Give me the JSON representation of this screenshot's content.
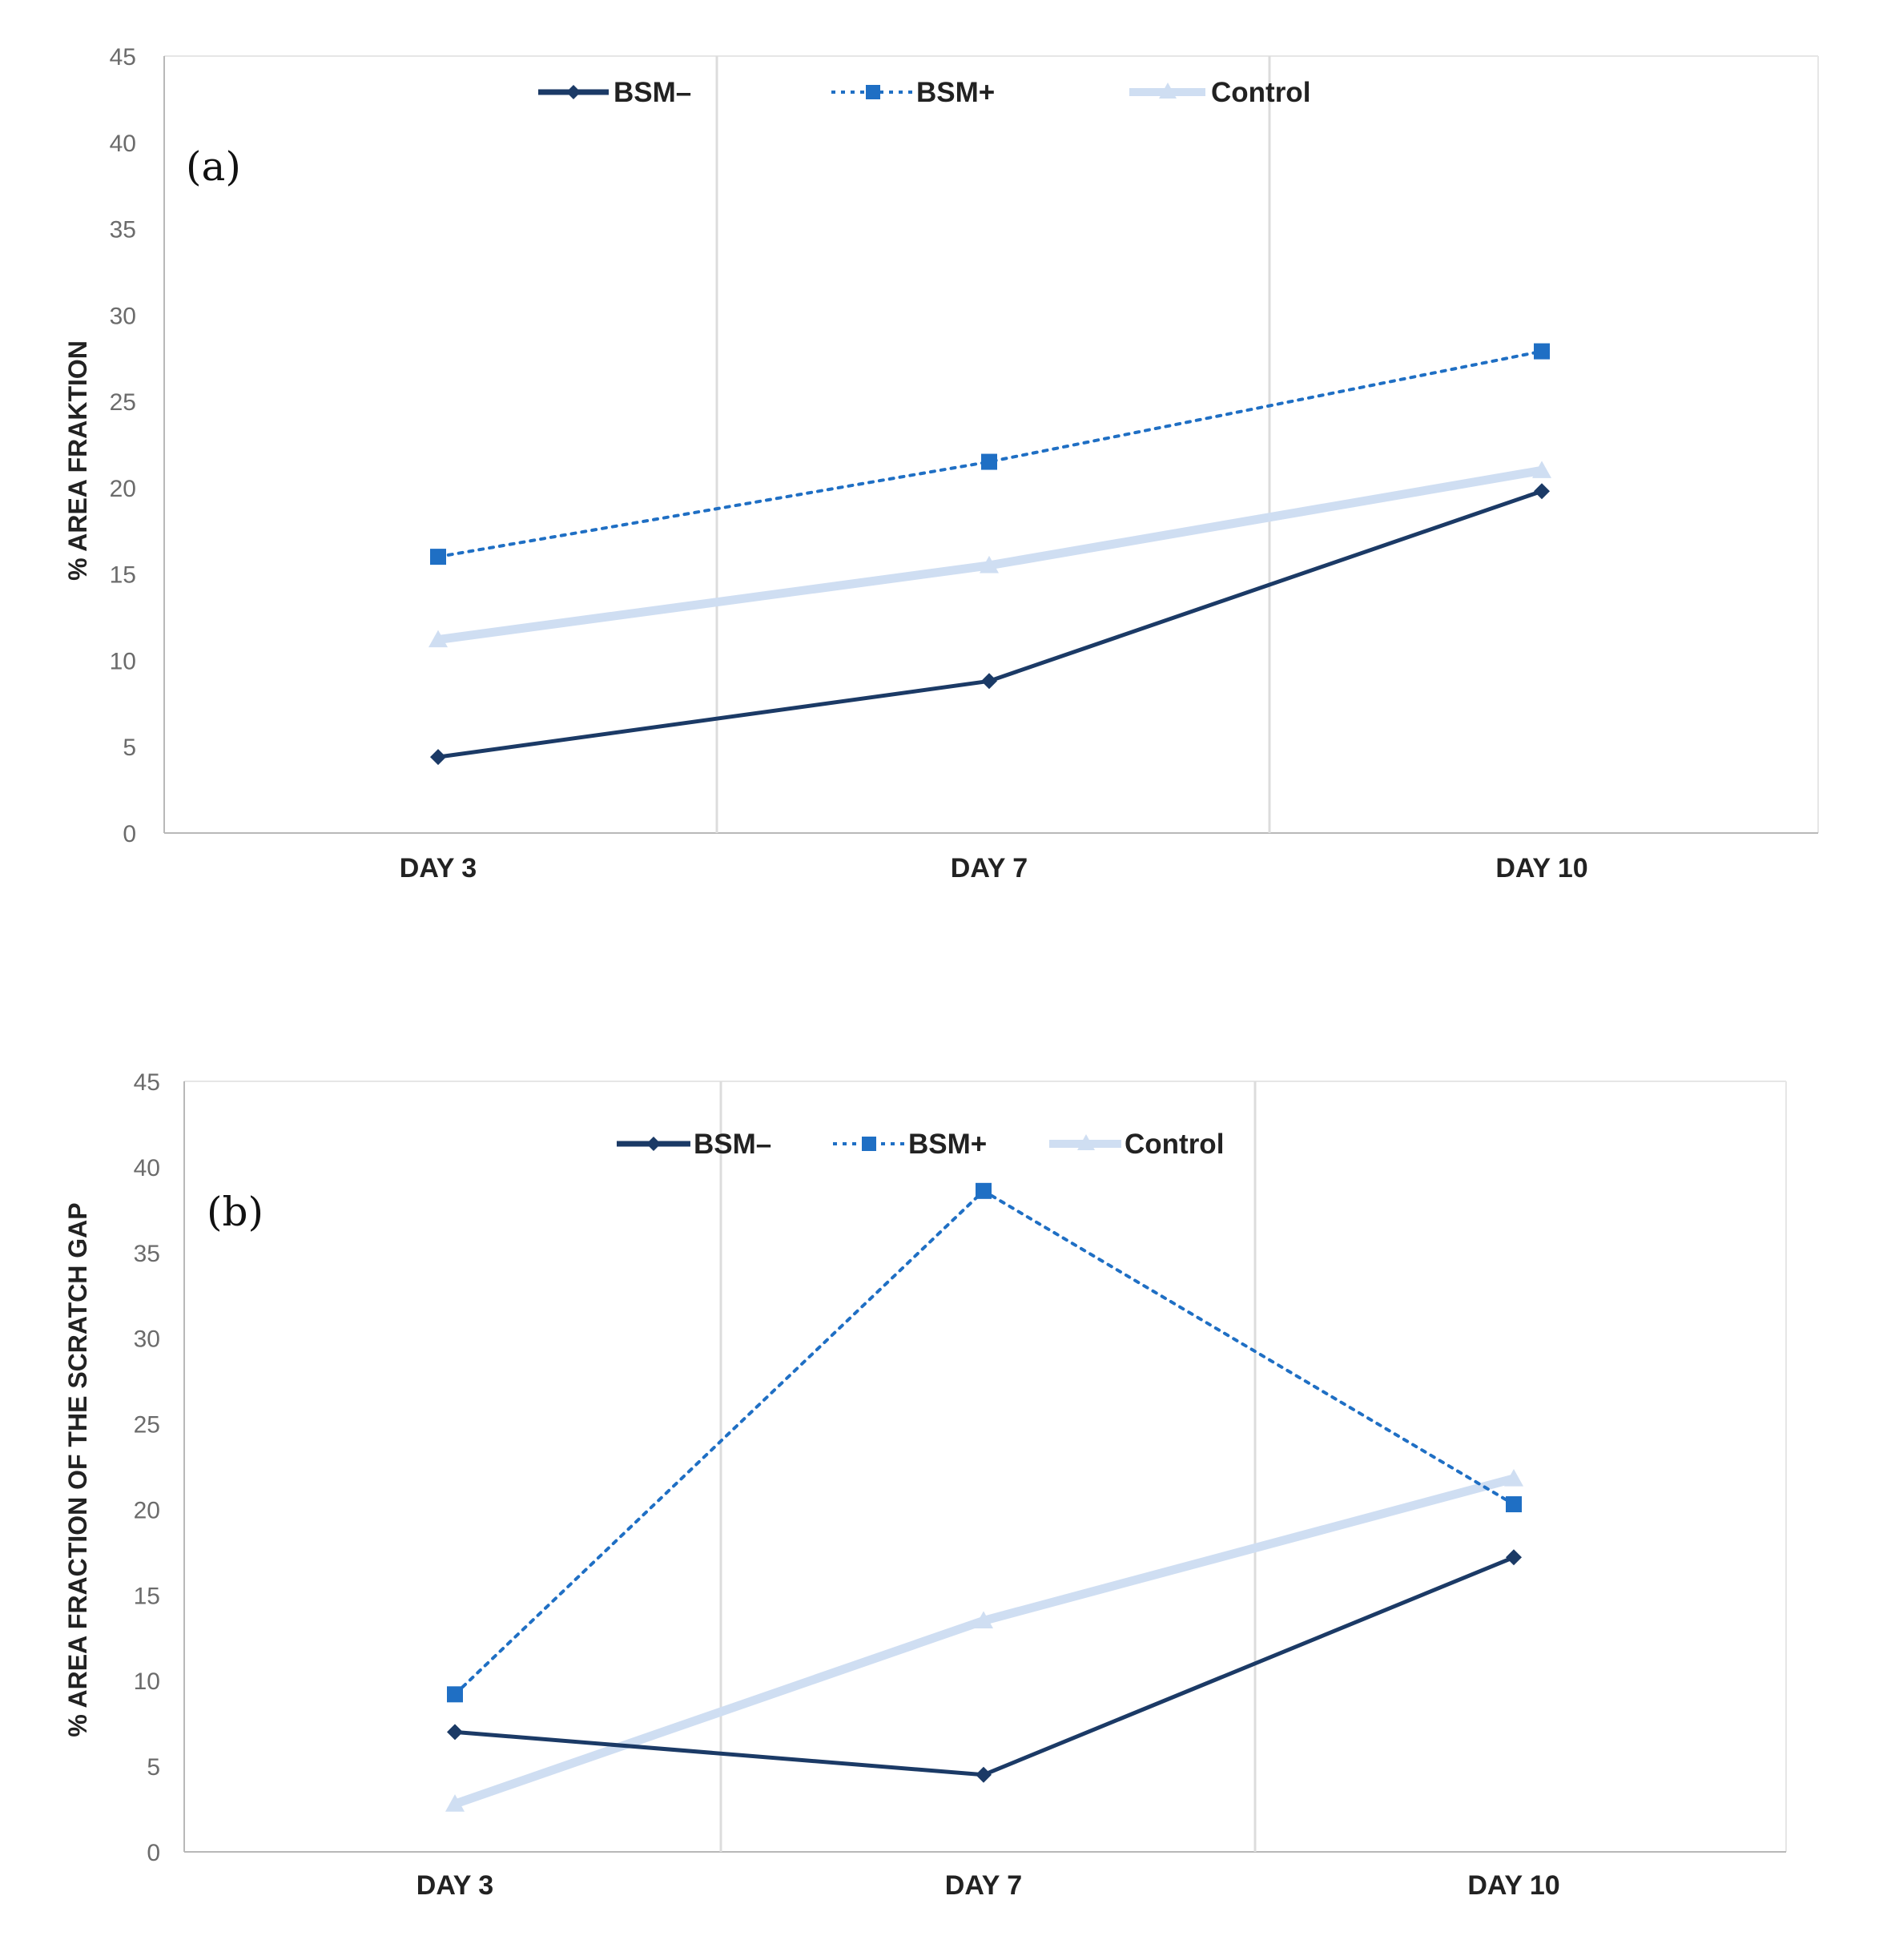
{
  "colors": {
    "bsm_minus": "#1b3a66",
    "bsm_plus": "#1f6fc4",
    "control": "#cfdef2",
    "grid": "#dcdcdc",
    "axis": "#b8b8b8"
  },
  "chart_data": [
    {
      "type": "line",
      "panel_label": "(a)",
      "title": "",
      "xlabel": "",
      "ylabel": "% AREA FRAKTION",
      "categories": [
        "DAY 3",
        "DAY 7",
        "DAY 10"
      ],
      "ylim": [
        0,
        45
      ],
      "yticks": [
        "0",
        "5",
        "10",
        "15",
        "20",
        "25",
        "30",
        "35",
        "40",
        "45"
      ],
      "legend_position": "top-center",
      "series": [
        {
          "name": "BSM–",
          "style": "solid-diamond",
          "values": [
            4.4,
            8.8,
            19.8
          ]
        },
        {
          "name": "BSM+",
          "style": "dotted-square",
          "values": [
            16.0,
            21.5,
            27.9
          ]
        },
        {
          "name": "Control",
          "style": "thick-triangle",
          "values": [
            11.2,
            15.5,
            21.0
          ]
        }
      ]
    },
    {
      "type": "line",
      "panel_label": "(b)",
      "title": "",
      "xlabel": "",
      "ylabel": "% AREA FRACTION OF THE SCRATCH GAP",
      "categories": [
        "DAY 3",
        "DAY 7",
        "DAY 10"
      ],
      "ylim": [
        0,
        45
      ],
      "yticks": [
        "0",
        "5",
        "10",
        "15",
        "20",
        "25",
        "30",
        "35",
        "40",
        "45"
      ],
      "legend_position": "top-center",
      "series": [
        {
          "name": "BSM–",
          "style": "solid-diamond",
          "values": [
            7.0,
            4.5,
            17.2
          ]
        },
        {
          "name": "BSM+",
          "style": "dotted-square",
          "values": [
            9.2,
            38.6,
            20.3
          ]
        },
        {
          "name": "Control",
          "style": "thick-triangle",
          "values": [
            2.8,
            13.5,
            21.8
          ]
        }
      ]
    }
  ]
}
